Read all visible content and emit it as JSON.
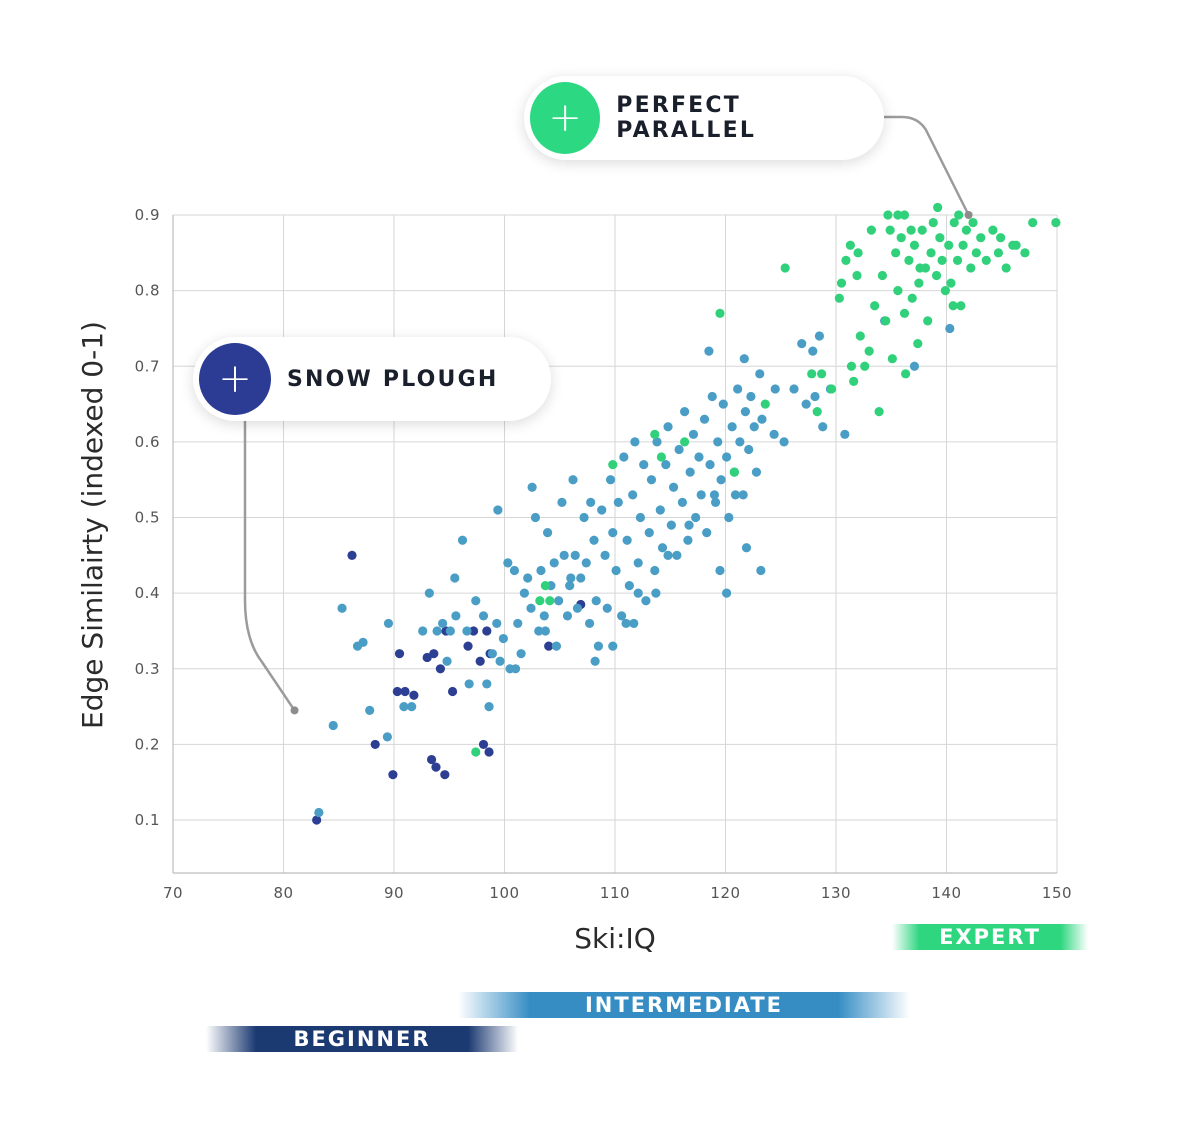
{
  "chart_data": {
    "type": "scatter",
    "title": "",
    "xlabel": "Ski:IQ",
    "ylabel": "Edge Similairty (indexed 0-1)",
    "xlim": [
      70,
      150
    ],
    "ylim": [
      0.03,
      0.9
    ],
    "xticks": [
      70,
      80,
      90,
      100,
      110,
      120,
      130,
      140,
      150
    ],
    "yticks": [
      0.1,
      0.2,
      0.3,
      0.4,
      0.5,
      0.6,
      0.7,
      0.8,
      0.9
    ],
    "grid": true,
    "series": [
      {
        "name": "beginner",
        "color": "#2d3f93",
        "points": [
          [
            86.2,
            0.45
          ],
          [
            83,
            0.1
          ],
          [
            88.3,
            0.2
          ],
          [
            89.9,
            0.16
          ],
          [
            90.5,
            0.32
          ],
          [
            90.3,
            0.27
          ],
          [
            91,
            0.27
          ],
          [
            91.8,
            0.265
          ],
          [
            93,
            0.315
          ],
          [
            93.6,
            0.32
          ],
          [
            93.4,
            0.18
          ],
          [
            93.8,
            0.17
          ],
          [
            94.2,
            0.3
          ],
          [
            94.7,
            0.35
          ],
          [
            94.6,
            0.16
          ],
          [
            95.3,
            0.27
          ],
          [
            96.7,
            0.33
          ],
          [
            97.2,
            0.35
          ],
          [
            98.1,
            0.2
          ],
          [
            98.6,
            0.19
          ],
          [
            98.4,
            0.35
          ],
          [
            98.7,
            0.32
          ],
          [
            97.8,
            0.31
          ],
          [
            104,
            0.33
          ],
          [
            106.9,
            0.385
          ]
        ]
      },
      {
        "name": "intermediate",
        "color": "#4a9ec6",
        "points": [
          [
            83.2,
            0.11
          ],
          [
            84.5,
            0.225
          ],
          [
            85.3,
            0.38
          ],
          [
            86.7,
            0.33
          ],
          [
            87.2,
            0.335
          ],
          [
            87.8,
            0.245
          ],
          [
            89.4,
            0.21
          ],
          [
            89.5,
            0.36
          ],
          [
            90.9,
            0.25
          ],
          [
            91.6,
            0.25
          ],
          [
            92.6,
            0.35
          ],
          [
            93.2,
            0.4
          ],
          [
            93.9,
            0.35
          ],
          [
            94.4,
            0.36
          ],
          [
            94.8,
            0.31
          ],
          [
            95.5,
            0.42
          ],
          [
            95.6,
            0.37
          ],
          [
            95.1,
            0.35
          ],
          [
            96.2,
            0.47
          ],
          [
            96.8,
            0.28
          ],
          [
            96.6,
            0.35
          ],
          [
            97.4,
            0.39
          ],
          [
            98.1,
            0.37
          ],
          [
            98.4,
            0.28
          ],
          [
            98.6,
            0.25
          ],
          [
            98.9,
            0.32
          ],
          [
            99.3,
            0.36
          ],
          [
            99.6,
            0.31
          ],
          [
            99.9,
            0.34
          ],
          [
            99.4,
            0.51
          ],
          [
            100.3,
            0.44
          ],
          [
            100.5,
            0.3
          ],
          [
            100.9,
            0.43
          ],
          [
            101.2,
            0.36
          ],
          [
            101.5,
            0.32
          ],
          [
            101.8,
            0.4
          ],
          [
            102.1,
            0.42
          ],
          [
            102.4,
            0.38
          ],
          [
            102.5,
            0.54
          ],
          [
            102.8,
            0.5
          ],
          [
            103.1,
            0.35
          ],
          [
            103.3,
            0.43
          ],
          [
            103.6,
            0.37
          ],
          [
            103.9,
            0.48
          ],
          [
            104.2,
            0.41
          ],
          [
            104.5,
            0.44
          ],
          [
            104.7,
            0.33
          ],
          [
            104.9,
            0.39
          ],
          [
            105.2,
            0.52
          ],
          [
            105.4,
            0.45
          ],
          [
            105.7,
            0.37
          ],
          [
            105.9,
            0.41
          ],
          [
            106.2,
            0.55
          ],
          [
            106.4,
            0.45
          ],
          [
            106.6,
            0.38
          ],
          [
            106.9,
            0.42
          ],
          [
            107.2,
            0.5
          ],
          [
            107.4,
            0.44
          ],
          [
            107.7,
            0.36
          ],
          [
            107.8,
            0.52
          ],
          [
            108.1,
            0.47
          ],
          [
            108.3,
            0.39
          ],
          [
            108.5,
            0.33
          ],
          [
            108.8,
            0.51
          ],
          [
            109.1,
            0.45
          ],
          [
            109.3,
            0.38
          ],
          [
            109.6,
            0.55
          ],
          [
            109.8,
            0.48
          ],
          [
            110.1,
            0.43
          ],
          [
            110.3,
            0.52
          ],
          [
            110.6,
            0.37
          ],
          [
            110.8,
            0.58
          ],
          [
            111.1,
            0.47
          ],
          [
            111.3,
            0.41
          ],
          [
            111.6,
            0.53
          ],
          [
            111.8,
            0.6
          ],
          [
            112.1,
            0.44
          ],
          [
            112.3,
            0.5
          ],
          [
            112.6,
            0.57
          ],
          [
            112.8,
            0.39
          ],
          [
            113.1,
            0.48
          ],
          [
            113.3,
            0.55
          ],
          [
            113.6,
            0.43
          ],
          [
            113.8,
            0.6
          ],
          [
            114.1,
            0.51
          ],
          [
            114.3,
            0.46
          ],
          [
            114.6,
            0.57
          ],
          [
            114.8,
            0.62
          ],
          [
            115.1,
            0.49
          ],
          [
            115.3,
            0.54
          ],
          [
            115.6,
            0.45
          ],
          [
            115.8,
            0.59
          ],
          [
            116.1,
            0.52
          ],
          [
            116.3,
            0.64
          ],
          [
            116.6,
            0.47
          ],
          [
            116.8,
            0.56
          ],
          [
            117.1,
            0.61
          ],
          [
            117.3,
            0.5
          ],
          [
            117.6,
            0.58
          ],
          [
            117.8,
            0.53
          ],
          [
            118.1,
            0.63
          ],
          [
            118.3,
            0.48
          ],
          [
            118.6,
            0.57
          ],
          [
            118.8,
            0.66
          ],
          [
            119.1,
            0.52
          ],
          [
            119.3,
            0.6
          ],
          [
            119.6,
            0.55
          ],
          [
            119.8,
            0.65
          ],
          [
            120.1,
            0.58
          ],
          [
            120.3,
            0.5
          ],
          [
            120.6,
            0.62
          ],
          [
            120.8,
            0.56
          ],
          [
            121.1,
            0.67
          ],
          [
            121.3,
            0.6
          ],
          [
            121.6,
            0.53
          ],
          [
            121.8,
            0.64
          ],
          [
            122.1,
            0.59
          ],
          [
            122.3,
            0.66
          ],
          [
            122.6,
            0.62
          ],
          [
            122.8,
            0.56
          ],
          [
            123.1,
            0.69
          ],
          [
            123.3,
            0.63
          ],
          [
            124.5,
            0.67
          ],
          [
            125.3,
            0.6
          ],
          [
            126.2,
            0.67
          ],
          [
            127.3,
            0.65
          ],
          [
            128.1,
            0.66
          ],
          [
            128.8,
            0.62
          ],
          [
            129.5,
            0.67
          ],
          [
            130.8,
            0.61
          ],
          [
            127.9,
            0.72
          ],
          [
            128.5,
            0.74
          ],
          [
            126.9,
            0.73
          ],
          [
            121.7,
            0.71
          ],
          [
            118.5,
            0.72
          ],
          [
            111,
            0.36
          ],
          [
            112.1,
            0.4
          ],
          [
            108.2,
            0.31
          ],
          [
            106,
            0.42
          ],
          [
            103.7,
            0.35
          ],
          [
            101,
            0.3
          ],
          [
            116.7,
            0.49
          ],
          [
            119.5,
            0.43
          ],
          [
            120.1,
            0.4
          ],
          [
            123.2,
            0.43
          ],
          [
            121.9,
            0.46
          ],
          [
            120.9,
            0.53
          ],
          [
            124.4,
            0.61
          ],
          [
            119,
            0.53
          ],
          [
            114.8,
            0.45
          ],
          [
            113.7,
            0.4
          ],
          [
            111.7,
            0.36
          ],
          [
            109.8,
            0.33
          ],
          [
            137.1,
            0.7
          ],
          [
            134.4,
            0.76
          ],
          [
            140.3,
            0.75
          ]
        ]
      },
      {
        "name": "expert",
        "color": "#30d17a",
        "points": [
          [
            97.4,
            0.19
          ],
          [
            103.2,
            0.39
          ],
          [
            103.7,
            0.41
          ],
          [
            104.1,
            0.39
          ],
          [
            109.8,
            0.57
          ],
          [
            113.6,
            0.61
          ],
          [
            114.2,
            0.58
          ],
          [
            116.3,
            0.6
          ],
          [
            119.5,
            0.77
          ],
          [
            120.8,
            0.56
          ],
          [
            123.6,
            0.65
          ],
          [
            125.4,
            0.83
          ],
          [
            128.3,
            0.64
          ],
          [
            127.8,
            0.69
          ],
          [
            128.7,
            0.69
          ],
          [
            129.6,
            0.67
          ],
          [
            130.3,
            0.79
          ],
          [
            130.5,
            0.81
          ],
          [
            130.9,
            0.84
          ],
          [
            131.3,
            0.86
          ],
          [
            131.4,
            0.7
          ],
          [
            131.6,
            0.68
          ],
          [
            131.9,
            0.82
          ],
          [
            132.2,
            0.74
          ],
          [
            132.6,
            0.7
          ],
          [
            133,
            0.72
          ],
          [
            133.5,
            0.78
          ],
          [
            133.9,
            0.64
          ],
          [
            134.2,
            0.82
          ],
          [
            134.5,
            0.76
          ],
          [
            134.9,
            0.88
          ],
          [
            135.1,
            0.71
          ],
          [
            135.4,
            0.85
          ],
          [
            135.6,
            0.8
          ],
          [
            135.9,
            0.87
          ],
          [
            136.2,
            0.77
          ],
          [
            136.3,
            0.69
          ],
          [
            136.6,
            0.84
          ],
          [
            136.9,
            0.79
          ],
          [
            137.1,
            0.86
          ],
          [
            137.4,
            0.73
          ],
          [
            137.5,
            0.81
          ],
          [
            137.8,
            0.88
          ],
          [
            138.1,
            0.83
          ],
          [
            138.3,
            0.76
          ],
          [
            138.6,
            0.85
          ],
          [
            138.8,
            0.89
          ],
          [
            139.1,
            0.82
          ],
          [
            139.4,
            0.87
          ],
          [
            139.6,
            0.84
          ],
          [
            139.9,
            0.8
          ],
          [
            140.2,
            0.86
          ],
          [
            140.4,
            0.81
          ],
          [
            140.7,
            0.89
          ],
          [
            141,
            0.84
          ],
          [
            141.3,
            0.78
          ],
          [
            141.5,
            0.86
          ],
          [
            141.8,
            0.88
          ],
          [
            142.2,
            0.83
          ],
          [
            142.7,
            0.85
          ],
          [
            143.1,
            0.87
          ],
          [
            143.6,
            0.84
          ],
          [
            144.2,
            0.88
          ],
          [
            144.7,
            0.85
          ],
          [
            145.4,
            0.83
          ],
          [
            146.3,
            0.86
          ],
          [
            147.1,
            0.85
          ],
          [
            147.8,
            0.89
          ],
          [
            149.9,
            0.89
          ],
          [
            136.2,
            0.9
          ],
          [
            135.6,
            0.9
          ],
          [
            136.8,
            0.88
          ],
          [
            137.6,
            0.83
          ],
          [
            139.2,
            0.91
          ],
          [
            140.6,
            0.78
          ],
          [
            141.1,
            0.9
          ],
          [
            142.4,
            0.89
          ],
          [
            144.9,
            0.87
          ],
          [
            146,
            0.86
          ],
          [
            132,
            0.85
          ],
          [
            133.2,
            0.88
          ],
          [
            134.7,
            0.9
          ]
        ]
      }
    ],
    "annotations": [
      {
        "label": "PERFECT PARALLEL",
        "icon": "plus-icon",
        "color": "#2dd883",
        "point": [
          142,
          0.9
        ]
      },
      {
        "label": "SNOW PLOUGH",
        "icon": "plus-icon",
        "color": "#2c3b93",
        "point": [
          81,
          0.245
        ]
      }
    ],
    "bands": [
      {
        "label": "EXPERT",
        "color": "#2ed67f"
      },
      {
        "label": "INTERMEDIATE",
        "color": "#358dc4"
      },
      {
        "label": "BEGINNER",
        "color": "#1c3a72"
      }
    ]
  }
}
